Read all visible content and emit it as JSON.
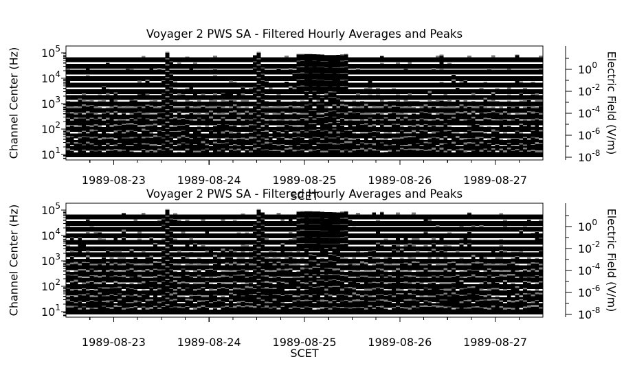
{
  "colors": {
    "foreground": "#000000",
    "background": "#ffffff",
    "peak_gray": "#7e7e7e"
  },
  "panels": [
    {
      "title": "Voyager 2 PWS SA - Filtered Hourly Averages and Peaks",
      "left_axis": {
        "label": "Channel Center (Hz)",
        "ticks": [
          {
            "base": "10",
            "exp": "5"
          },
          {
            "base": "10",
            "exp": "4"
          },
          {
            "base": "10",
            "exp": "3"
          },
          {
            "base": "10",
            "exp": "2"
          },
          {
            "base": "10",
            "exp": "1"
          }
        ]
      },
      "right_axis": {
        "label": "Electric Field (V/m)",
        "ticks": [
          {
            "base": "10",
            "exp": "0"
          },
          {
            "base": "10",
            "exp": "-2"
          },
          {
            "base": "10",
            "exp": "-4"
          },
          {
            "base": "10",
            "exp": "-6"
          },
          {
            "base": "10",
            "exp": "-8"
          }
        ]
      },
      "x_axis": {
        "label": "SCET",
        "tick_labels": [
          "1989-08-23",
          "1989-08-24",
          "1989-08-25",
          "1989-08-26",
          "1989-08-27"
        ]
      }
    },
    {
      "title": "Voyager 2 PWS SA - Filtered Hourly Averages and Peaks",
      "left_axis": {
        "label": "Channel Center (Hz)",
        "ticks": [
          {
            "base": "10",
            "exp": "5"
          },
          {
            "base": "10",
            "exp": "4"
          },
          {
            "base": "10",
            "exp": "3"
          },
          {
            "base": "10",
            "exp": "2"
          },
          {
            "base": "10",
            "exp": "1"
          }
        ]
      },
      "right_axis": {
        "label": "Electric Field (V/m)",
        "ticks": [
          {
            "base": "10",
            "exp": "0"
          },
          {
            "base": "10",
            "exp": "-2"
          },
          {
            "base": "10",
            "exp": "-4"
          },
          {
            "base": "10",
            "exp": "-6"
          },
          {
            "base": "10",
            "exp": "-8"
          }
        ]
      },
      "x_axis": {
        "label": "SCET",
        "tick_labels": [
          "1989-08-23",
          "1989-08-24",
          "1989-08-25",
          "1989-08-26",
          "1989-08-27"
        ]
      }
    }
  ],
  "chart_data": [
    {
      "type": "area",
      "subtype": "multichannel-spectrum-analyzer-strip-plot",
      "title": "Voyager 2 PWS SA - Filtered Hourly Averages and Peaks",
      "xlabel": "SCET",
      "ylabel_left": "Channel Center (Hz)",
      "ylabel_right": "Electric Field (V/m)",
      "x_start": "1989-08-22 12:00",
      "x_end": "1989-08-27 12:00",
      "x_tick_labels": [
        "1989-08-23",
        "1989-08-24",
        "1989-08-25",
        "1989-08-26",
        "1989-08-27"
      ],
      "x_minor_tick_hours": 6,
      "y_scale": "log",
      "channel_centers_hz": [
        56200,
        31100,
        17800,
        10000,
        5620,
        3110,
        1780,
        1000,
        562,
        311,
        178,
        100,
        56.2,
        31.1,
        17.8,
        10
      ],
      "left_tick_values_hz": [
        100000,
        10000,
        1000,
        100,
        10
      ],
      "right_tick_values_vm": [
        1,
        0.01,
        0.0001,
        1e-06,
        1e-08
      ],
      "series_styles": {
        "hourly_average": "black",
        "hourly_peak": "gray"
      },
      "events": [
        {
          "start": "1989-08-23 12:00",
          "end": "1989-08-23 15:00",
          "description": "narrow burst across all channels"
        },
        {
          "start": "1989-08-24 11:00",
          "end": "1989-08-24 14:00",
          "description": "narrow burst across all channels"
        },
        {
          "start": "1989-08-24 22:00",
          "end": "1989-08-25 10:00",
          "description": "broad enhancement, strongest in upper and middle channels"
        }
      ],
      "render": {
        "seed": 20817,
        "p_black": [
          0.03,
          0.04,
          0.04,
          0.05,
          0.07,
          0.08,
          0.1,
          0.12,
          0.3,
          0.45,
          0.4,
          0.45,
          0.55,
          0.6,
          0.65,
          0.78
        ],
        "amp_black": [
          2.0,
          2.0,
          2.0,
          2.0,
          2.0,
          2.5,
          2.5,
          2.5,
          2.5,
          2.5,
          2.5,
          3.0,
          3.0,
          3.5,
          3.5,
          3.5
        ],
        "p_gray": [
          0.05,
          0.06,
          0.08,
          0.08,
          0.12,
          0.15,
          0.25,
          0.45,
          0.85,
          0.85,
          0.6,
          0.55,
          0.6,
          0.65,
          0.7,
          0.82
        ]
      }
    },
    {
      "type": "area",
      "subtype": "multichannel-spectrum-analyzer-strip-plot",
      "title": "Voyager 2 PWS SA - Filtered Hourly Averages and Peaks",
      "xlabel": "SCET",
      "ylabel_left": "Channel Center (Hz)",
      "ylabel_right": "Electric Field (V/m)",
      "x_start": "1989-08-22 12:00",
      "x_end": "1989-08-27 12:00",
      "x_tick_labels": [
        "1989-08-23",
        "1989-08-24",
        "1989-08-25",
        "1989-08-26",
        "1989-08-27"
      ],
      "x_minor_tick_hours": 6,
      "y_scale": "log",
      "channel_centers_hz": [
        56200,
        31100,
        17800,
        10000,
        5620,
        3110,
        1780,
        1000,
        562,
        311,
        178,
        100,
        56.2,
        31.1,
        17.8,
        10
      ],
      "left_tick_values_hz": [
        100000,
        10000,
        1000,
        100,
        10
      ],
      "right_tick_values_vm": [
        1,
        0.01,
        0.0001,
        1e-06,
        1e-08
      ],
      "series_styles": {
        "hourly_average": "black",
        "hourly_peak": "gray"
      },
      "events": [
        {
          "start": "1989-08-23 12:00",
          "end": "1989-08-23 15:00",
          "description": "narrow burst across all channels"
        },
        {
          "start": "1989-08-24 11:00",
          "end": "1989-08-24 14:00",
          "description": "narrow burst across all channels"
        },
        {
          "start": "1989-08-24 22:00",
          "end": "1989-08-25 10:00",
          "description": "broad enhancement, strongest in upper and middle channels"
        }
      ],
      "render": {
        "seed": 77121,
        "p_black": [
          0.04,
          0.05,
          0.06,
          0.07,
          0.08,
          0.09,
          0.11,
          0.13,
          0.32,
          0.47,
          0.42,
          0.47,
          0.57,
          0.62,
          0.67,
          0.8
        ],
        "amp_black": [
          2.0,
          2.0,
          2.0,
          2.0,
          2.0,
          2.5,
          2.5,
          2.5,
          2.5,
          2.5,
          2.5,
          3.0,
          3.0,
          3.5,
          3.5,
          3.5
        ],
        "p_gray": [
          0.07,
          0.08,
          0.1,
          0.1,
          0.14,
          0.17,
          0.27,
          0.47,
          0.86,
          0.86,
          0.62,
          0.57,
          0.62,
          0.67,
          0.72,
          0.84
        ]
      }
    }
  ]
}
